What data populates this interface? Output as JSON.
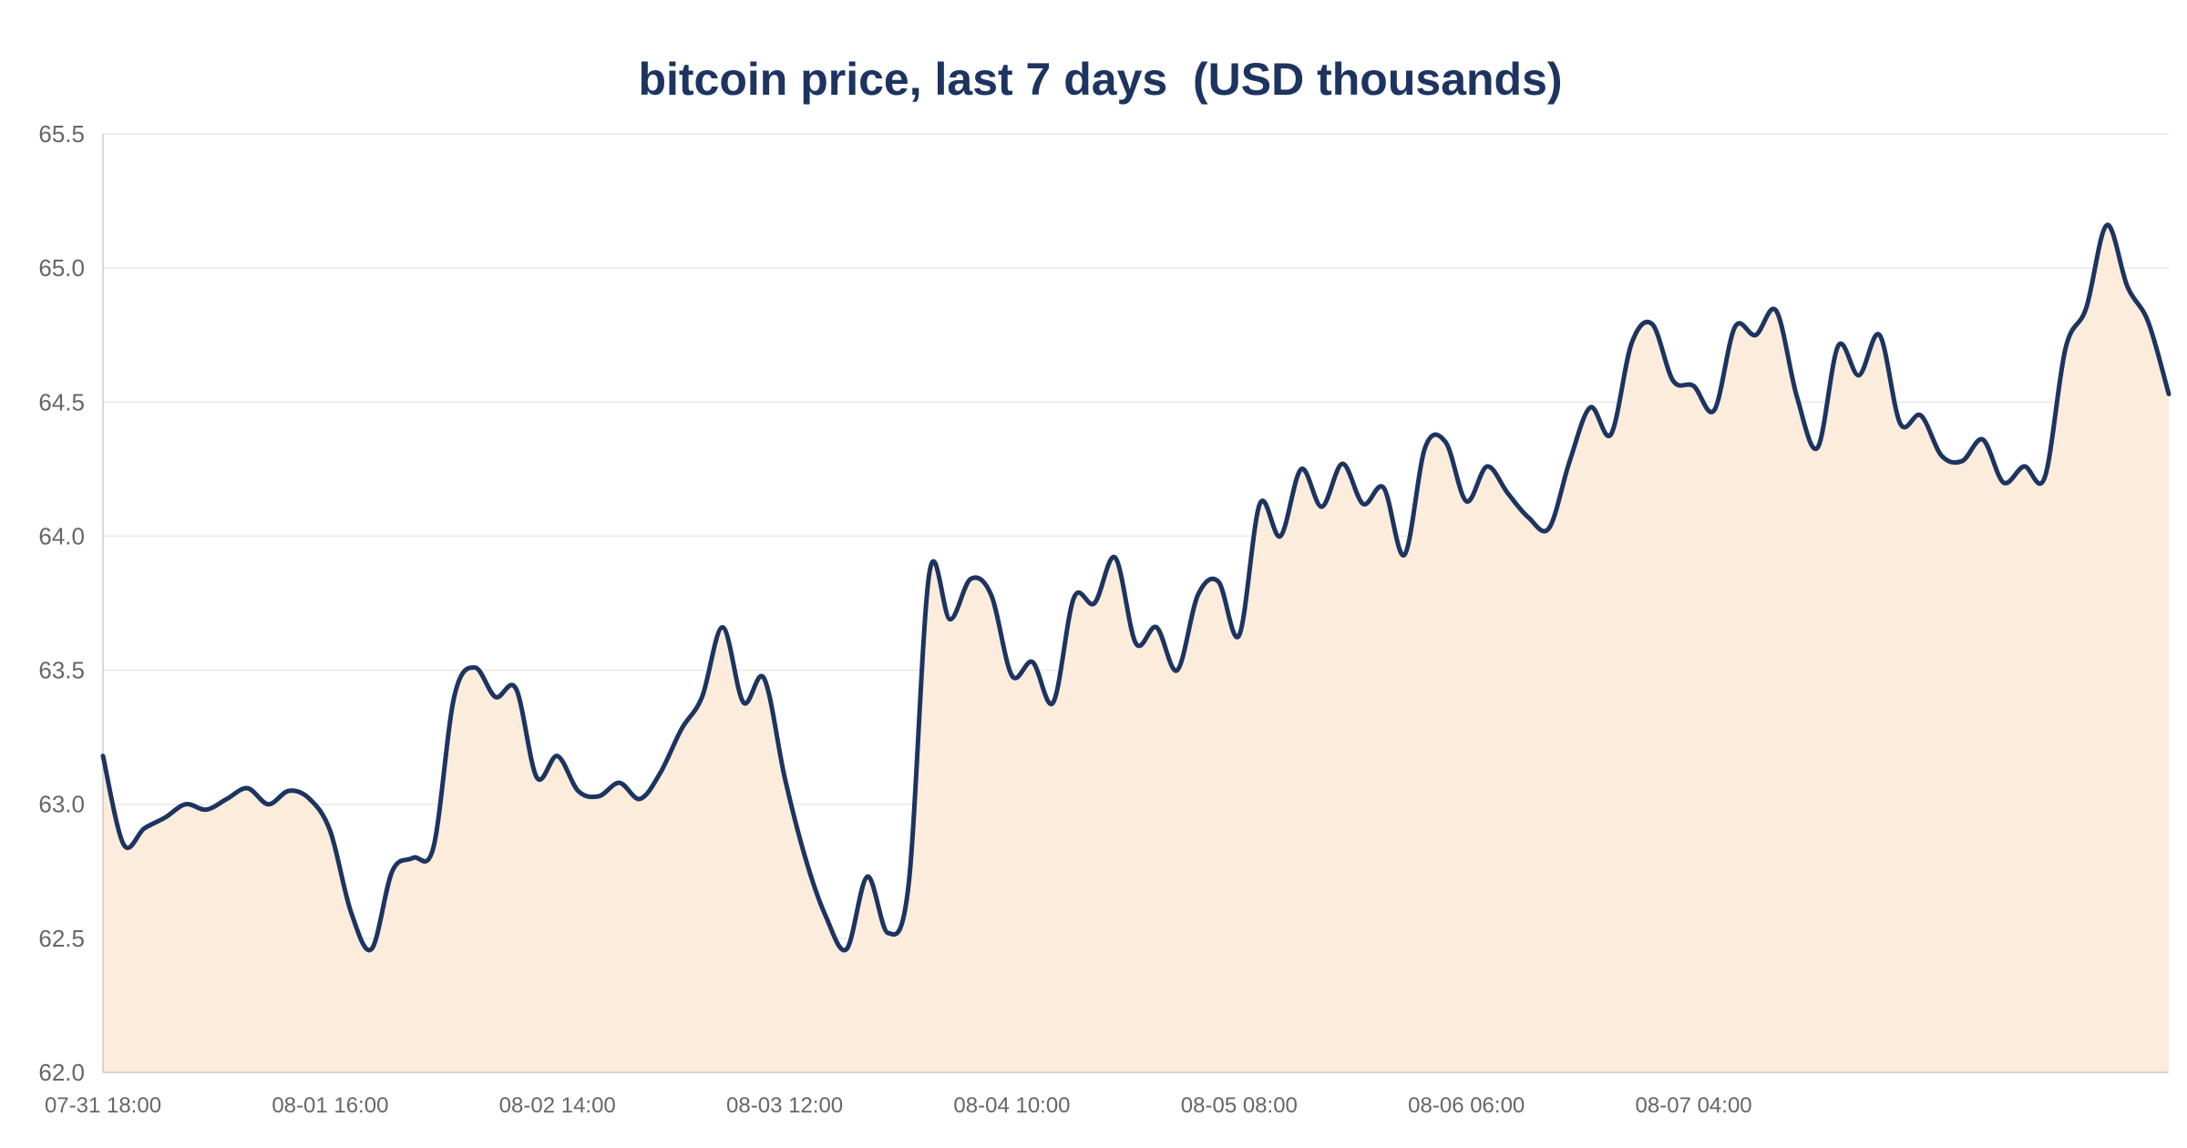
{
  "chart_data": {
    "type": "area",
    "title": "bitcoin price, last 7 days  (USD thousands)",
    "xlabel": "",
    "ylabel": "",
    "ylim": [
      62.0,
      65.5
    ],
    "yticks": [
      "62.0",
      "62.5",
      "63.0",
      "63.5",
      "64.0",
      "64.5",
      "65.0",
      "65.5"
    ],
    "x_start": "07-31 18:00",
    "x_step_hours": 2,
    "xticks": [
      {
        "label": "07-31 18:00",
        "index": 0
      },
      {
        "label": "08-01 16:00",
        "index": 11
      },
      {
        "label": "08-02 14:00",
        "index": 22
      },
      {
        "label": "08-03 12:00",
        "index": 33
      },
      {
        "label": "08-04 10:00",
        "index": 44
      },
      {
        "label": "08-05 08:00",
        "index": 55
      },
      {
        "label": "08-06 06:00",
        "index": 66
      },
      {
        "label": "08-07 04:00",
        "index": 77
      }
    ],
    "grid": true,
    "colors": {
      "line": "#1d3461",
      "fill": "#fcecdc",
      "grid": "#e8e8e8",
      "axis": "#cccccc",
      "title": "#1d3461",
      "tick_text": "#666666"
    },
    "series": [
      {
        "values": [
          63.18,
          62.85,
          62.91,
          62.95,
          63.0,
          62.98,
          63.02,
          63.06,
          63.0,
          63.05,
          63.02,
          62.9,
          62.6,
          62.46,
          62.75,
          62.8,
          62.84,
          63.4,
          63.51,
          63.4,
          63.43,
          63.1,
          63.18,
          63.05,
          63.03,
          63.08,
          63.02,
          63.12,
          63.28,
          63.4,
          63.66,
          63.38,
          63.47,
          63.1,
          62.8,
          62.58,
          62.46,
          62.73,
          62.52,
          62.7,
          63.86,
          63.69,
          63.84,
          63.78,
          63.48,
          63.53,
          63.38,
          63.77,
          63.75,
          63.92,
          63.6,
          63.66,
          63.5,
          63.78,
          63.83,
          63.63,
          64.12,
          64.0,
          64.25,
          64.11,
          64.27,
          64.12,
          64.18,
          63.93,
          64.33,
          64.35,
          64.13,
          64.26,
          64.16,
          64.07,
          64.03,
          64.28,
          64.48,
          64.38,
          64.72,
          64.79,
          64.58,
          64.56,
          64.47,
          64.78,
          64.75,
          64.84,
          64.52,
          64.33,
          64.71,
          64.6,
          64.75,
          64.42,
          64.45,
          64.3,
          64.28,
          64.36,
          64.2,
          64.26,
          64.22,
          64.7,
          64.85,
          65.16,
          64.93,
          64.8,
          64.53
        ]
      }
    ]
  }
}
